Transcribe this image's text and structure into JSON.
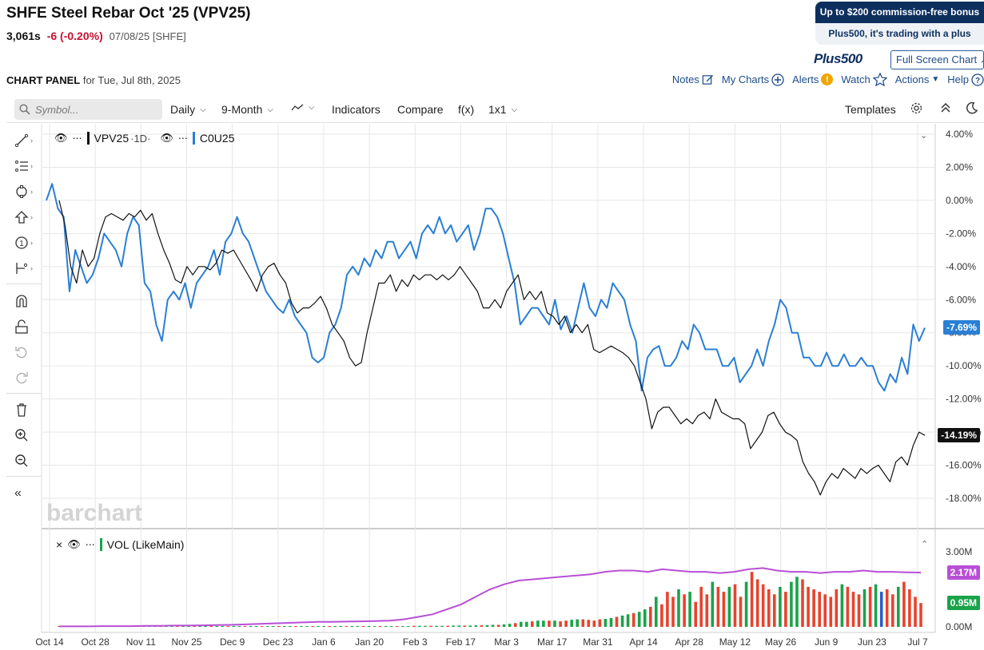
{
  "header": {
    "title": "SHFE Steel Rebar Oct '25 (VPV25)",
    "last": "3,061s",
    "change": "-6 (-0.20%)",
    "meta": "07/08/25 [SHFE]"
  },
  "ad": {
    "line1": "Up to $200 commission-free bonus",
    "line2": "Plus500, it's trading with a plus",
    "logo": "Plus500"
  },
  "fullscreen_label": "Full Screen Chart",
  "panel": {
    "title": "CHART PANEL",
    "for": "for Tue, Jul 8th, 2025"
  },
  "top_links": {
    "notes": "Notes",
    "mycharts": "My Charts",
    "alerts": "Alerts",
    "watch": "Watch",
    "actions": "Actions",
    "help": "Help"
  },
  "toolbar": {
    "search_placeholder": "Symbol...",
    "period": "Daily",
    "range": "9-Month",
    "indicators": "Indicators",
    "compare": "Compare",
    "fx": "f(x)",
    "layout": "1x1",
    "templates": "Templates"
  },
  "legend": {
    "main": "VPV25",
    "main_interval": "·1D·",
    "compare": "C0U25",
    "volume": "VOL (LikeMain)"
  },
  "watermark": "barchart",
  "colors": {
    "main": "#111111",
    "compare": "#2a7fd4",
    "vol_up": "#1aa34a",
    "vol_down": "#e8432e",
    "vol_neutral": "#2b5cc8",
    "vol_avg": "#b84fd6",
    "tag_main": "#111111",
    "tag_compare": "#2a7fd4",
    "tag_vol": "#b84fd6",
    "tag_vol2": "#1aa34a"
  },
  "chart_data": {
    "type": "line",
    "y_ticks": [
      "4.00%",
      "2.00%",
      "0.00%",
      "-2.00%",
      "-4.00%",
      "-6.00%",
      "-8.00%",
      "-10.00%",
      "-12.00%",
      "-14.00%",
      "-16.00%",
      "-18.00%"
    ],
    "x_ticks": [
      "Oct 14",
      "Oct 28",
      "Nov 11",
      "Nov 25",
      "Dec 9",
      "Dec 23",
      "Jan 6",
      "Jan 20",
      "Feb 3",
      "Feb 17",
      "Mar 3",
      "Mar 17",
      "Mar 31",
      "Apr 14",
      "Apr 28",
      "May 12",
      "May 26",
      "Jun 9",
      "Jun 23",
      "Jul 7"
    ],
    "last_main": "-14.19%",
    "last_compare": "-7.69%",
    "series": [
      {
        "name": "VPV25",
        "values": [
          0.0,
          -1.5,
          -4.0,
          -5.0,
          -3.0,
          -4.0,
          -3.5,
          -2.0,
          -1.0,
          -0.8,
          -1.0,
          -1.2,
          -0.8,
          -1.0,
          -0.6,
          -1.2,
          -0.8,
          -2.0,
          -3.0,
          -3.8,
          -4.8,
          -5.0,
          -4.0,
          -4.5,
          -4.0,
          -4.0,
          -4.2,
          -3.8,
          -3.0,
          -3.2,
          -3.0,
          -3.6,
          -4.2,
          -4.8,
          -5.5,
          -4.5,
          -4.0,
          -3.8,
          -4.5,
          -5.0,
          -6.2,
          -6.8,
          -6.5,
          -6.5,
          -6.2,
          -5.8,
          -6.5,
          -7.5,
          -8.0,
          -8.5,
          -9.5,
          -10.0,
          -9.8,
          -8.0,
          -6.5,
          -5.0,
          -5.0,
          -4.5,
          -5.5,
          -4.8,
          -5.2,
          -4.5,
          -4.8,
          -4.5,
          -4.5,
          -4.8,
          -4.5,
          -4.8,
          -4.5,
          -4.0,
          -4.5,
          -5.0,
          -5.5,
          -6.5,
          -6.5,
          -6.0,
          -6.5,
          -5.5,
          -5.0,
          -4.5,
          -6.0,
          -5.5,
          -6.0,
          -5.5,
          -6.8,
          -7.0,
          -7.5,
          -7.0,
          -8.0,
          -7.5,
          -8.0,
          -7.5,
          -9.0,
          -9.2,
          -9.0,
          -8.8,
          -9.0,
          -9.2,
          -9.5,
          -10.0,
          -11.0,
          -12.0,
          -13.8,
          -12.8,
          -12.5,
          -12.5,
          -13.0,
          -13.5,
          -13.2,
          -13.5,
          -13.0,
          -12.8,
          -13.2,
          -12.0,
          -12.8,
          -13.0,
          -13.2,
          -13.2,
          -13.5,
          -15.0,
          -14.5,
          -14.0,
          -13.0,
          -12.8,
          -13.5,
          -14.0,
          -14.2,
          -14.5,
          -15.8,
          -16.5,
          -17.0,
          -17.8,
          -17.0,
          -16.5,
          -16.8,
          -16.2,
          -16.5,
          -16.8,
          -16.2,
          -16.5,
          -16.2,
          -16.0,
          -16.5,
          -17.0,
          -15.8,
          -15.5,
          -16.0,
          -14.8,
          -14.0,
          -14.2
        ]
      },
      {
        "name": "C0U25",
        "values": [
          0.0,
          1.0,
          -0.5,
          -1.0,
          -5.5,
          -3.0,
          -4.0,
          -5.0,
          -4.5,
          -3.5,
          -2.0,
          -2.5,
          -3.0,
          -4.0,
          -2.0,
          -1.0,
          -1.5,
          -5.0,
          -5.5,
          -7.5,
          -8.5,
          -6.0,
          -5.5,
          -6.0,
          -5.0,
          -6.5,
          -5.0,
          -4.5,
          -4.0,
          -3.0,
          -4.5,
          -2.5,
          -2.0,
          -1.0,
          -2.0,
          -2.5,
          -3.5,
          -4.5,
          -5.5,
          -6.0,
          -6.5,
          -6.8,
          -6.0,
          -7.0,
          -7.5,
          -8.0,
          -9.5,
          -9.8,
          -9.5,
          -8.0,
          -7.5,
          -6.5,
          -4.5,
          -4.0,
          -4.5,
          -3.5,
          -4.0,
          -3.0,
          -3.5,
          -2.5,
          -2.5,
          -3.5,
          -3.0,
          -2.5,
          -3.5,
          -2.0,
          -1.5,
          -2.0,
          -1.0,
          -2.0,
          -1.5,
          -2.5,
          -2.0,
          -1.5,
          -3.0,
          -2.0,
          -0.5,
          -0.5,
          -1.0,
          -2.0,
          -3.5,
          -5.0,
          -7.5,
          -7.0,
          -6.5,
          -6.5,
          -7.0,
          -7.5,
          -6.0,
          -7.8,
          -7.0,
          -8.0,
          -6.5,
          -5.0,
          -6.5,
          -7.0,
          -6.0,
          -6.5,
          -5.0,
          -5.5,
          -6.0,
          -7.5,
          -8.5,
          -11.5,
          -9.5,
          -9.0,
          -8.8,
          -10.0,
          -10.0,
          -9.5,
          -8.5,
          -9.0,
          -7.5,
          -8.0,
          -9.0,
          -9.0,
          -9.0,
          -10.0,
          -10.0,
          -9.5,
          -11.0,
          -10.5,
          -10.0,
          -9.0,
          -10.0,
          -8.5,
          -7.5,
          -6.0,
          -6.5,
          -8.0,
          -8.0,
          -9.5,
          -9.5,
          -10.0,
          -10.0,
          -9.2,
          -10.0,
          -10.0,
          -9.3,
          -10.0,
          -10.0,
          -9.5,
          -10.0,
          -10.0,
          -11.0,
          -11.5,
          -10.5,
          -11.0,
          -9.5,
          -10.5,
          -7.5,
          -8.5,
          -7.7
        ]
      }
    ],
    "volume": {
      "y_ticks": [
        "3.00M",
        "0.00M"
      ],
      "last_avg": "2.17M",
      "last_vol": "0.95M",
      "values_m": [
        0.02,
        0.02,
        0.02,
        0.02,
        0.02,
        0.02,
        0.02,
        0.02,
        0.02,
        0.02,
        0.02,
        0.02,
        0.02,
        0.02,
        0.02,
        0.02,
        0.02,
        0.02,
        0.02,
        0.02,
        0.02,
        0.02,
        0.02,
        0.02,
        0.02,
        0.02,
        0.02,
        0.02,
        0.02,
        0.02,
        0.02,
        0.02,
        0.02,
        0.02,
        0.02,
        0.02,
        0.02,
        0.02,
        0.02,
        0.02,
        0.02,
        0.02,
        0.02,
        0.02,
        0.03,
        0.03,
        0.03,
        0.03,
        0.03,
        0.03,
        0.03,
        0.03,
        0.03,
        0.03,
        0.03,
        0.03,
        0.03,
        0.03,
        0.03,
        0.03,
        0.03,
        0.03,
        0.03,
        0.04,
        0.04,
        0.04,
        0.04,
        0.04,
        0.04,
        0.04,
        0.05,
        0.05,
        0.05,
        0.05,
        0.06,
        0.06,
        0.07,
        0.08,
        0.08,
        0.1,
        0.12,
        0.15,
        0.2,
        0.2,
        0.22,
        0.25,
        0.25,
        0.25,
        0.25,
        0.22,
        0.25,
        0.28,
        0.3,
        0.3,
        0.28,
        0.25,
        0.3,
        0.32,
        0.35,
        0.4,
        0.45,
        0.5,
        0.55,
        0.6,
        0.7,
        0.8,
        1.2,
        0.9,
        1.4,
        1.2,
        1.5,
        1.3,
        1.4,
        1.0,
        1.6,
        1.3,
        1.8,
        1.6,
        1.4,
        1.6,
        1.7,
        1.2,
        1.8,
        2.2,
        1.9,
        1.7,
        1.5,
        1.3,
        1.6,
        1.4,
        1.8,
        2.0,
        1.9,
        1.6,
        1.5,
        1.4,
        1.3,
        1.2,
        1.5,
        1.7,
        1.6,
        1.4,
        1.3,
        1.5,
        1.6,
        1.7,
        1.4,
        1.5,
        1.3,
        1.6,
        1.8,
        1.5,
        1.2,
        0.95
      ],
      "avg_m": [
        0.02,
        0.02,
        0.02,
        0.03,
        0.03,
        0.03,
        0.04,
        0.04,
        0.05,
        0.05,
        0.06,
        0.07,
        0.08,
        0.1,
        0.12,
        0.14,
        0.16,
        0.18,
        0.2,
        0.2,
        0.21,
        0.22,
        0.23,
        0.25,
        0.3,
        0.4,
        0.5,
        0.7,
        0.9,
        1.2,
        1.5,
        1.7,
        1.85,
        1.9,
        1.95,
        2.0,
        2.05,
        2.1,
        2.2,
        2.25,
        2.25,
        2.2,
        2.3,
        2.25,
        2.2,
        2.2,
        2.15,
        2.2,
        2.3,
        2.35,
        2.25,
        2.2,
        2.2,
        2.15,
        2.2,
        2.2,
        2.25,
        2.2,
        2.2,
        2.18,
        2.17
      ]
    }
  }
}
